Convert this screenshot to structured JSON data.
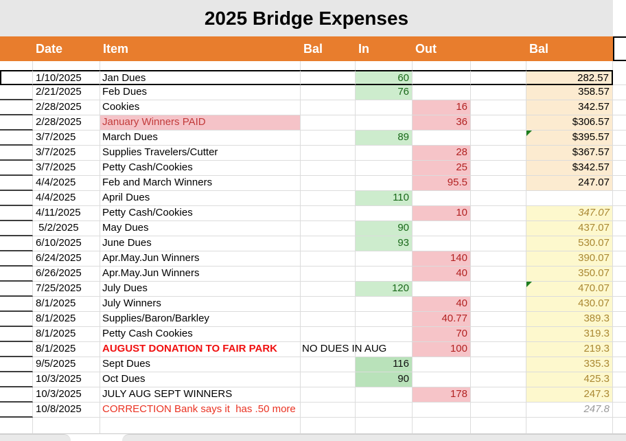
{
  "app": {
    "title": "2025 Bridge Expenses"
  },
  "header": {
    "columns": [
      "Date",
      "Item",
      "Bal",
      "In",
      "Out",
      "Bal"
    ]
  },
  "rows": [
    {
      "date": "1/10/2025",
      "item": "Jan Dues",
      "in": "60",
      "bal": "282.57",
      "bal_style": "tan",
      "row_border": true
    },
    {
      "date": "2/21/2025",
      "item": "Feb Dues",
      "in": "76",
      "bal": "358.57",
      "bal_style": "tan"
    },
    {
      "date": "2/28/2025",
      "item": "Cookies",
      "out": "16",
      "bal": "342.57",
      "bal_style": "tan"
    },
    {
      "date": "2/28/2025",
      "item": "January Winners PAID",
      "item_style": "red-pink",
      "out": "36",
      "bal": "$306.57",
      "bal_style": "tan"
    },
    {
      "date": "3/7/2025",
      "item": "March Dues",
      "in": "89",
      "bal": "$395.57",
      "bal_style": "tan",
      "marker": true
    },
    {
      "date": "3/7/2025",
      "item": "Supplies Travelers/Cutter",
      "out": "28",
      "bal": "$367.57",
      "bal_style": "tan"
    },
    {
      "date": "3/7/2025",
      "item": "Petty Cash/Cookies",
      "out": "25",
      "bal": "$342.57",
      "bal_style": "tan"
    },
    {
      "date": "4/4/2025",
      "item": "Feb and March Winners",
      "out": "95.5",
      "bal": "247.07",
      "bal_style": "tan"
    },
    {
      "date": "4/4/2025",
      "item": "April Dues",
      "in": "110"
    },
    {
      "date": "4/11/2025",
      "item": "Petty Cash/Cookies",
      "out": "10",
      "bal": "347.07",
      "bal_style": "yellow-italic"
    },
    {
      "date": " 5/2/2025",
      "item": "May Dues",
      "in": "90",
      "bal": "437.07",
      "bal_style": "yellow"
    },
    {
      "date": "6/10/2025",
      "item": "June Dues",
      "in": "93",
      "bal": "530.07",
      "bal_style": "yellow"
    },
    {
      "date": "6/24/2025",
      "item": "Apr.May.Jun Winners",
      "out": "140",
      "bal": "390.07",
      "bal_style": "yellow"
    },
    {
      "date": "6/26/2025",
      "item": "Apr.May.Jun Winners",
      "out": "40",
      "bal": "350.07",
      "bal_style": "yellow"
    },
    {
      "date": "7/25/2025",
      "item": "July Dues",
      "in": "120",
      "bal": "470.07",
      "bal_style": "yellow",
      "marker": true
    },
    {
      "date": "8/1/2025",
      "item": "July Winners",
      "out": "40",
      "bal": "430.07",
      "bal_style": "yellow"
    },
    {
      "date": "8/1/2025",
      "item": "Supplies/Baron/Barkley",
      "out": "40.77",
      "bal": "389.3",
      "bal_style": "yellow"
    },
    {
      "date": "8/1/2025",
      "item": "Petty Cash Cookies",
      "out": "70",
      "bal": "319.3",
      "bal_style": "yellow"
    },
    {
      "date": "8/1/2025",
      "item": "AUGUST DONATION TO FAIR PARK",
      "item_style": "red-bold",
      "note": "NO DUES IN AUG",
      "out": "100",
      "bal": "219.3",
      "bal_style": "yellow"
    },
    {
      "date": "9/5/2025",
      "item": "Sept Dues",
      "in": "116",
      "in_style": "green2",
      "bal": "335.3",
      "bal_style": "yellow"
    },
    {
      "date": "10/3/2025",
      "item": "Oct Dues",
      "in": "90",
      "in_style": "green2",
      "bal": "425.3",
      "bal_style": "yellow"
    },
    {
      "date": "10/3/2025",
      "item": "JULY AUG SEPT WINNERS",
      "out": "178",
      "bal": "247.3",
      "bal_style": "yellow"
    },
    {
      "date": "10/8/2025",
      "item": "CORRECTION Bank says it  has .50 more",
      "item_style": "red",
      "bal": "247.8",
      "bal_style": "gray-italic"
    }
  ],
  "colors": {
    "header_bg": "#e87d2d",
    "title_bg": "#e7e7e7",
    "in_bg": "#cdeccd",
    "in_bg_dark": "#b9e2ba",
    "in_text": "#1a691a",
    "out_bg": "#f6c4c8",
    "out_text": "#b22222",
    "item_highlight_bg": "#f5c3c8",
    "item_alert_red": "#f01010",
    "balance_tan_bg": "#fcebd0",
    "balance_yellow_bg": "#fdf8cd",
    "balance_gold_text": "#aa8833",
    "correction_gray_text": "#999999",
    "flag_green": "#1e7e1e",
    "gridline": "#dcdcdc"
  }
}
